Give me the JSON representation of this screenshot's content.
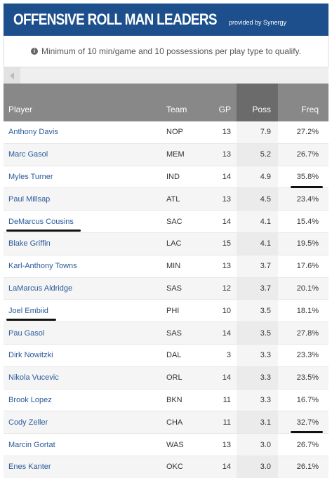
{
  "header": {
    "title": "OFFENSIVE ROLL MAN LEADERS",
    "provided": "provided by Synergy"
  },
  "note": {
    "icon": "info-icon",
    "text": "Minimum of 10 min/game and 10 possessions per play type to qualify."
  },
  "columns": {
    "player": "Player",
    "team": "Team",
    "gp": "GP",
    "poss": "Poss",
    "freq": "Freq"
  },
  "rows": [
    {
      "player": "Anthony Davis",
      "team": "NOP",
      "gp": "13",
      "poss": "7.9",
      "freq": "27.2%"
    },
    {
      "player": "Marc Gasol",
      "team": "MEM",
      "gp": "13",
      "poss": "5.2",
      "freq": "26.7%"
    },
    {
      "player": "Myles Turner",
      "team": "IND",
      "gp": "14",
      "poss": "4.9",
      "freq": "35.8%"
    },
    {
      "player": "Paul Millsap",
      "team": "ATL",
      "gp": "13",
      "poss": "4.5",
      "freq": "23.4%"
    },
    {
      "player": "DeMarcus Cousins",
      "team": "SAC",
      "gp": "14",
      "poss": "4.1",
      "freq": "15.4%"
    },
    {
      "player": "Blake Griffin",
      "team": "LAC",
      "gp": "15",
      "poss": "4.1",
      "freq": "19.5%"
    },
    {
      "player": "Karl-Anthony Towns",
      "team": "MIN",
      "gp": "13",
      "poss": "3.7",
      "freq": "17.6%"
    },
    {
      "player": "LaMarcus Aldridge",
      "team": "SAS",
      "gp": "12",
      "poss": "3.7",
      "freq": "20.1%"
    },
    {
      "player": "Joel Embiid",
      "team": "PHI",
      "gp": "10",
      "poss": "3.5",
      "freq": "18.1%"
    },
    {
      "player": "Pau Gasol",
      "team": "SAS",
      "gp": "14",
      "poss": "3.5",
      "freq": "27.8%"
    },
    {
      "player": "Dirk Nowitzki",
      "team": "DAL",
      "gp": "3",
      "poss": "3.3",
      "freq": "23.3%"
    },
    {
      "player": "Nikola Vucevic",
      "team": "ORL",
      "gp": "14",
      "poss": "3.3",
      "freq": "23.5%"
    },
    {
      "player": "Brook Lopez",
      "team": "BKN",
      "gp": "11",
      "poss": "3.3",
      "freq": "16.7%"
    },
    {
      "player": "Cody Zeller",
      "team": "CHA",
      "gp": "11",
      "poss": "3.1",
      "freq": "32.7%"
    },
    {
      "player": "Marcin Gortat",
      "team": "WAS",
      "gp": "13",
      "poss": "3.0",
      "freq": "26.7%"
    },
    {
      "player": "Enes Kanter",
      "team": "OKC",
      "gp": "14",
      "poss": "3.0",
      "freq": "26.1%"
    }
  ],
  "colors": {
    "header_bg": "#1d4f8c",
    "thead_bg": "#888888",
    "sorted_col_bg": "#6b6b6b",
    "link": "#2a5a9a"
  }
}
